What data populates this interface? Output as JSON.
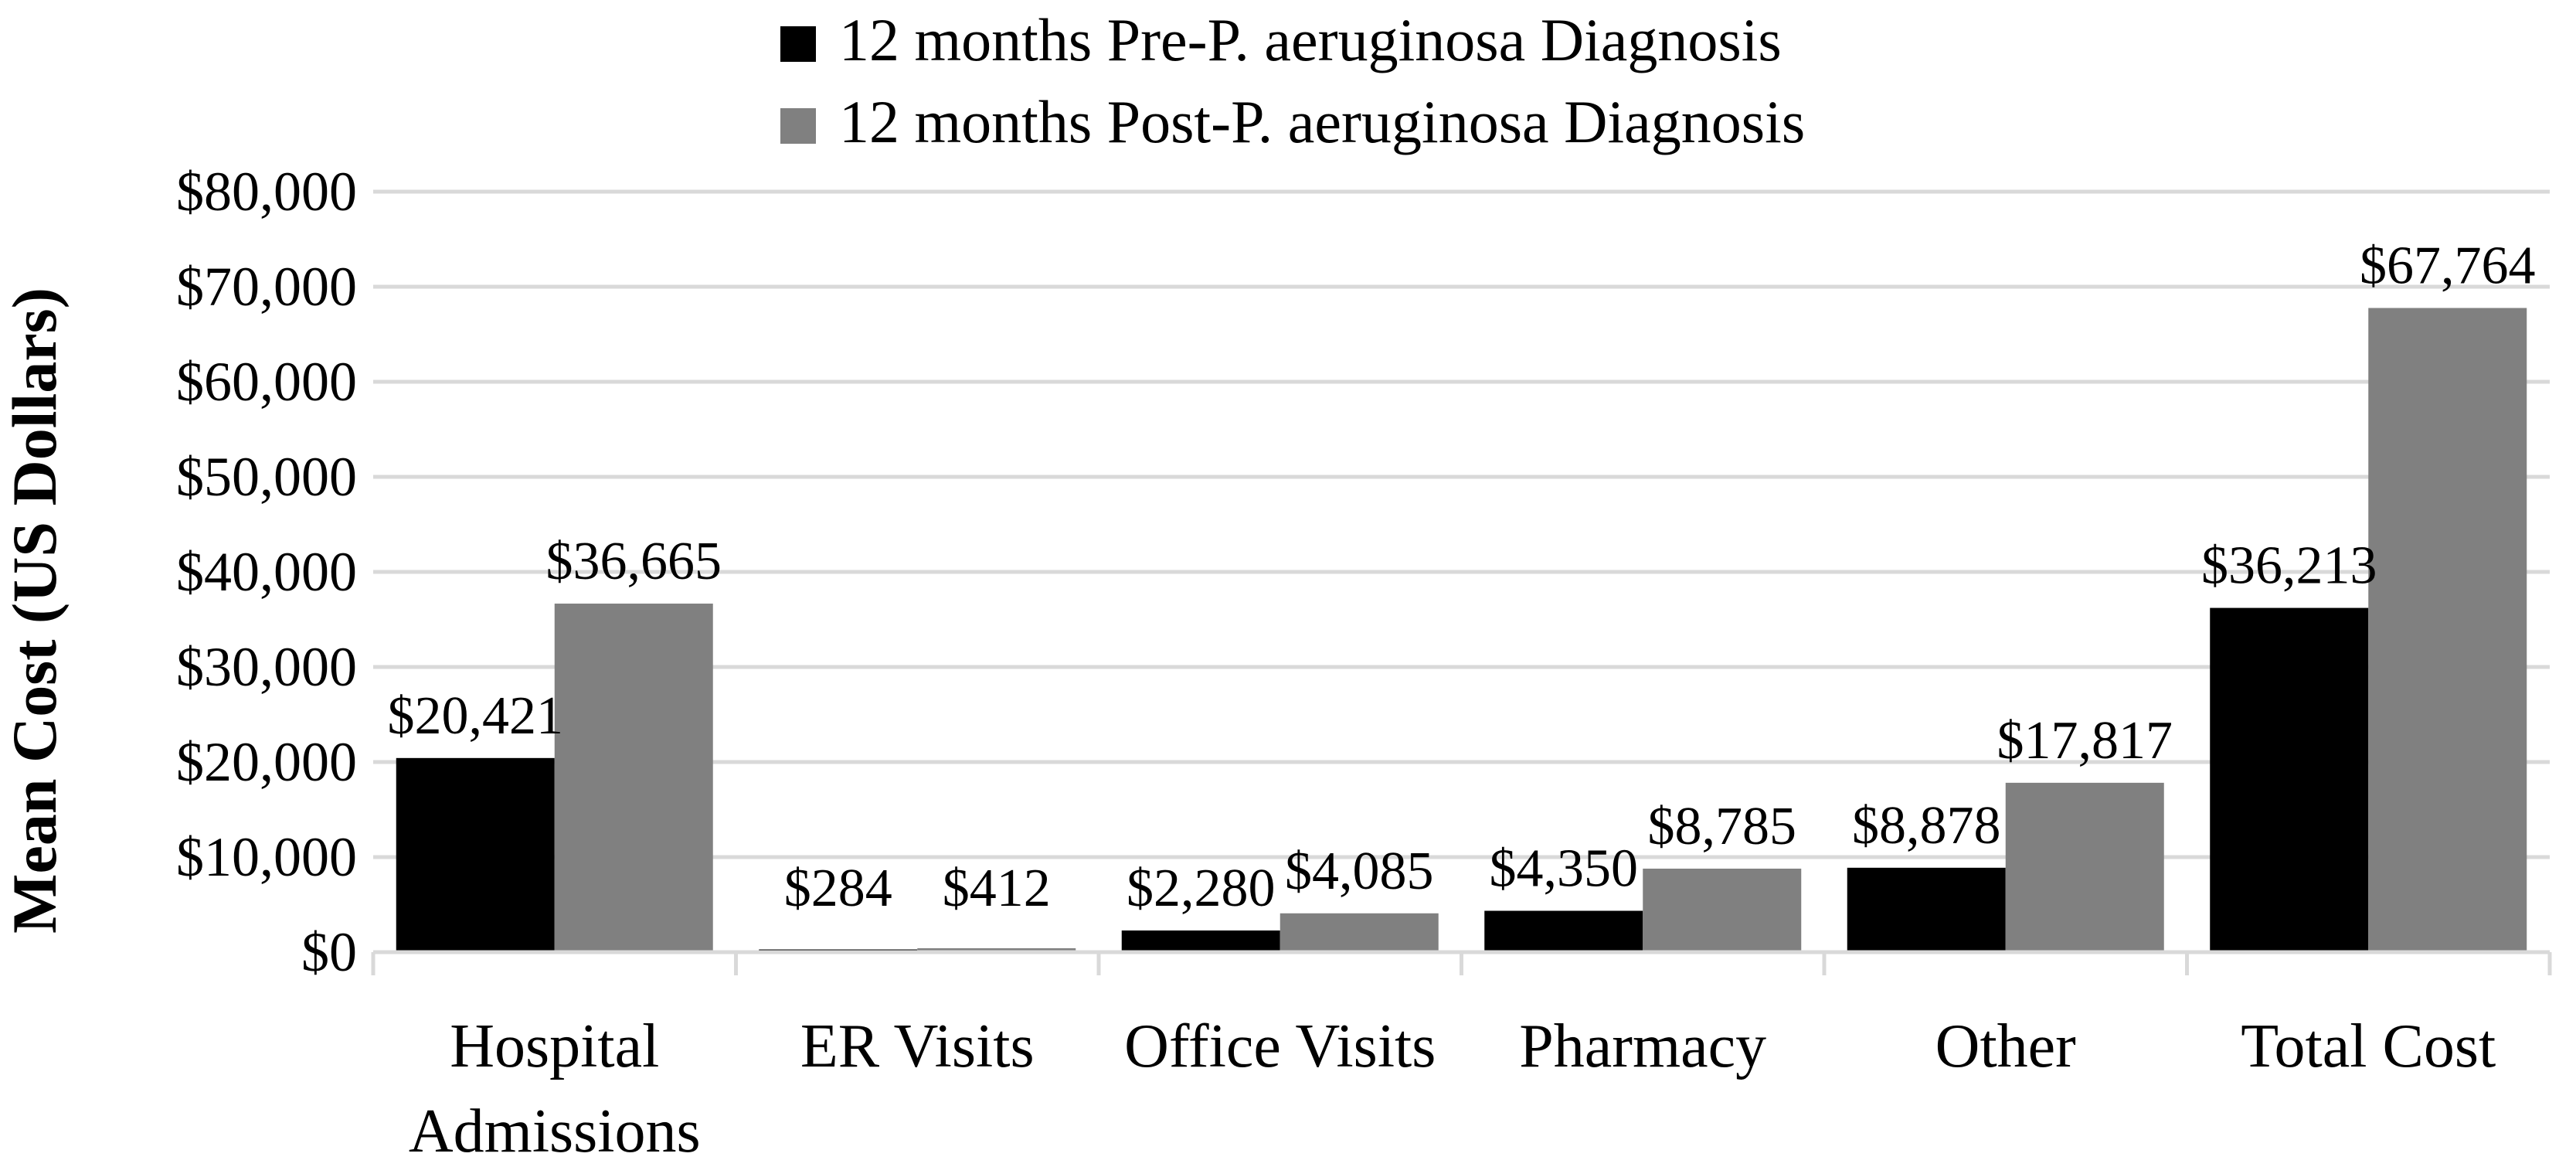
{
  "chart_data": {
    "type": "bar",
    "title": "",
    "xlabel": "",
    "ylabel": "Mean Cost (US Dollars)",
    "ylim": [
      0,
      80000
    ],
    "yticks": [
      0,
      10000,
      20000,
      30000,
      40000,
      50000,
      60000,
      70000,
      80000
    ],
    "ytick_labels": [
      "$0",
      "$10,000",
      "$20,000",
      "$30,000",
      "$40,000",
      "$50,000",
      "$60,000",
      "$70,000",
      "$80,000"
    ],
    "grid": true,
    "legend_position": "top",
    "categories": [
      [
        "Hospital",
        "Admissions"
      ],
      [
        "ER Visits"
      ],
      [
        "Office Visits"
      ],
      [
        "Pharmacy"
      ],
      [
        "Other"
      ],
      [
        "Total Cost"
      ]
    ],
    "series": [
      {
        "name": "12 months Pre-P. aeruginosa Diagnosis",
        "color": "#000000",
        "values": [
          20421,
          284,
          2280,
          4350,
          8878,
          36213
        ],
        "labels": [
          "$20,421",
          "$284",
          "$2,280",
          "$4,350",
          "$8,878",
          "$36,213"
        ]
      },
      {
        "name": "12 months Post-P. aeruginosa Diagnosis",
        "color": "#808080",
        "values": [
          36665,
          412,
          4085,
          8785,
          17817,
          67764
        ],
        "labels": [
          "$36,665",
          "$412",
          "$4,085",
          "$8,785",
          "$17,817",
          "$67,764"
        ]
      }
    ],
    "gridline_color": "#d9d9d9"
  }
}
